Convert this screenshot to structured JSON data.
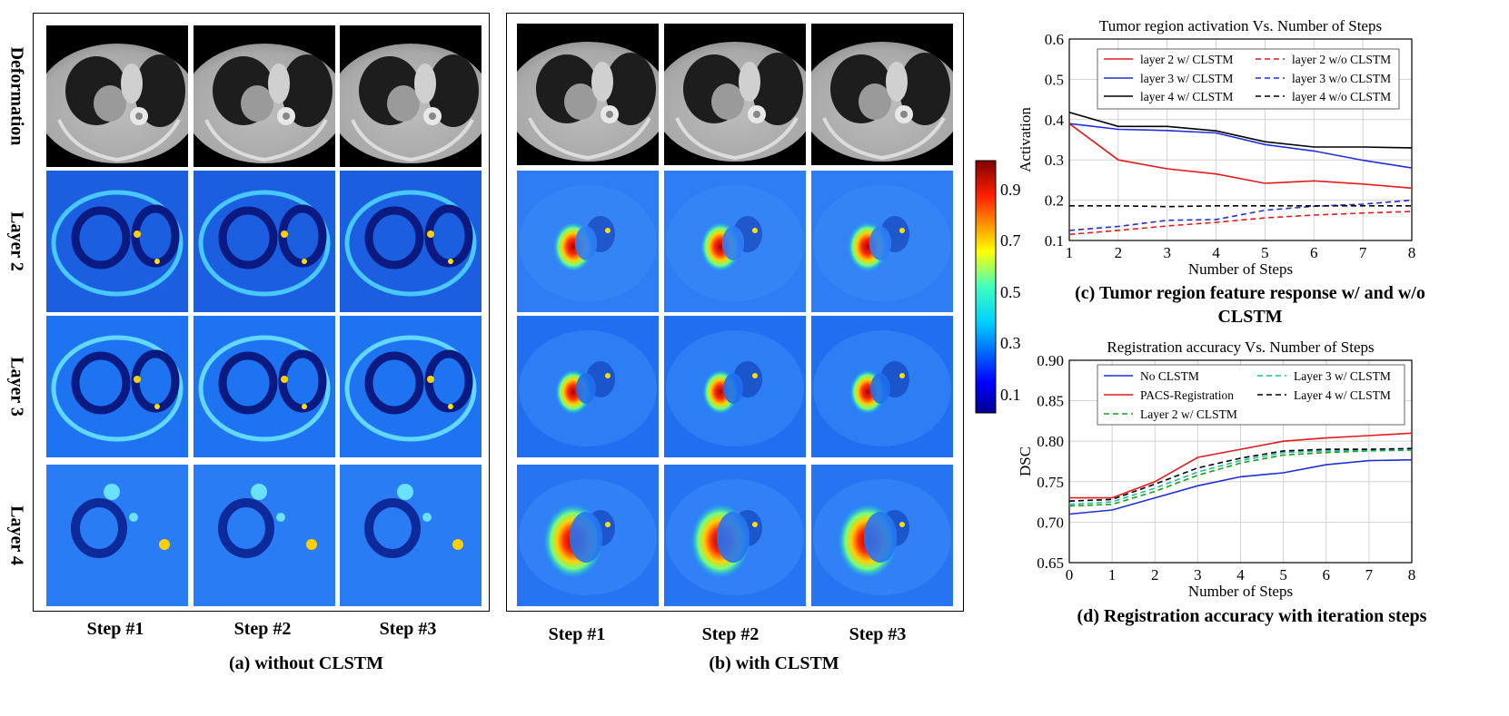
{
  "panel_a": {
    "caption": "(a) without CLSTM",
    "rows": [
      "Deformation",
      "Layer 2",
      "Layer 3",
      "Layer 4"
    ],
    "steps": [
      "Step #1",
      "Step #2",
      "Step #3"
    ]
  },
  "panel_b": {
    "caption": "(b) with CLSTM",
    "steps": [
      "Step #1",
      "Step #2",
      "Step #3"
    ]
  },
  "colorbar": {
    "ticks": [
      "0.9",
      "0.7",
      "0.5",
      "0.3",
      "0.1"
    ]
  },
  "caption_c": "(c) Tumor region feature response w/ and w/o CLSTM",
  "caption_d": "(d) Registration accuracy with iteration steps",
  "chart_data": [
    {
      "type": "line",
      "title": "Tumor region activation Vs. Number of Steps",
      "xlabel": "Number of Steps",
      "ylabel": "Activation",
      "x": [
        1,
        2,
        3,
        4,
        5,
        6,
        7,
        8
      ],
      "xlim": [
        1,
        8
      ],
      "ylim": [
        0.1,
        0.6
      ],
      "xticks": [
        1,
        2,
        3,
        4,
        5,
        6,
        7,
        8
      ],
      "yticks": [
        "0.1",
        "0.2",
        "0.3",
        "0.4",
        "0.5",
        "0.6"
      ],
      "grid": true,
      "legend_position": "top-right",
      "series": [
        {
          "name": "layer 2 w/ CLSTM",
          "color": "#e41a1c",
          "dash": false,
          "values": [
            0.39,
            0.3,
            0.278,
            0.265,
            0.242,
            0.248,
            0.24,
            0.23
          ]
        },
        {
          "name": "layer 3 w/ CLSTM",
          "color": "#1f2fd6",
          "dash": false,
          "values": [
            0.39,
            0.376,
            0.373,
            0.367,
            0.338,
            0.322,
            0.299,
            0.28
          ]
        },
        {
          "name": "layer 4 w/ CLSTM",
          "color": "#000000",
          "dash": false,
          "values": [
            0.418,
            0.383,
            0.383,
            0.372,
            0.345,
            0.332,
            0.332,
            0.33
          ]
        },
        {
          "name": "layer 2 w/o CLSTM",
          "color": "#e41a1c",
          "dash": true,
          "values": [
            0.115,
            0.125,
            0.136,
            0.145,
            0.156,
            0.163,
            0.168,
            0.172
          ]
        },
        {
          "name": "layer 3 w/o CLSTM",
          "color": "#1f2fd6",
          "dash": true,
          "values": [
            0.125,
            0.135,
            0.15,
            0.152,
            0.175,
            0.185,
            0.19,
            0.2
          ]
        },
        {
          "name": "layer 4 w/o CLSTM",
          "color": "#000000",
          "dash": true,
          "values": [
            0.186,
            0.186,
            0.184,
            0.186,
            0.186,
            0.186,
            0.186,
            0.186
          ]
        }
      ]
    },
    {
      "type": "line",
      "title": "Registration accuracy Vs. Number of Steps",
      "xlabel": "Number of Steps",
      "ylabel": "DSC",
      "x": [
        0,
        1,
        2,
        3,
        4,
        5,
        6,
        7,
        8
      ],
      "xlim": [
        0,
        8
      ],
      "ylim": [
        0.65,
        0.9
      ],
      "xticks": [
        0,
        1,
        2,
        3,
        4,
        5,
        6,
        7,
        8
      ],
      "yticks": [
        "0.65",
        "0.70",
        "0.75",
        "0.80",
        "0.85",
        "0.90"
      ],
      "grid": true,
      "legend_position": "top",
      "series": [
        {
          "name": "No CLSTM",
          "color": "#1f2fd6",
          "dash": false,
          "values": [
            0.71,
            0.715,
            0.73,
            0.745,
            0.756,
            0.761,
            0.771,
            0.776,
            0.777
          ]
        },
        {
          "name": "PACS-Registration",
          "color": "#e41a1c",
          "dash": false,
          "values": [
            0.73,
            0.73,
            0.75,
            0.78,
            0.79,
            0.8,
            0.804,
            0.807,
            0.81
          ]
        },
        {
          "name": "Layer 2 w/ CLSTM",
          "color": "#1a9e1a",
          "dash": true,
          "values": [
            0.72,
            0.722,
            0.738,
            0.758,
            0.773,
            0.783,
            0.786,
            0.788,
            0.789
          ]
        },
        {
          "name": "Layer 3 w/ CLSTM",
          "color": "#17bfa3",
          "dash": true,
          "values": [
            0.722,
            0.725,
            0.742,
            0.762,
            0.776,
            0.786,
            0.788,
            0.789,
            0.79
          ]
        },
        {
          "name": "Layer 4 w/ CLSTM",
          "color": "#000000",
          "dash": true,
          "values": [
            0.726,
            0.728,
            0.747,
            0.767,
            0.779,
            0.788,
            0.79,
            0.79,
            0.791
          ]
        }
      ]
    }
  ]
}
